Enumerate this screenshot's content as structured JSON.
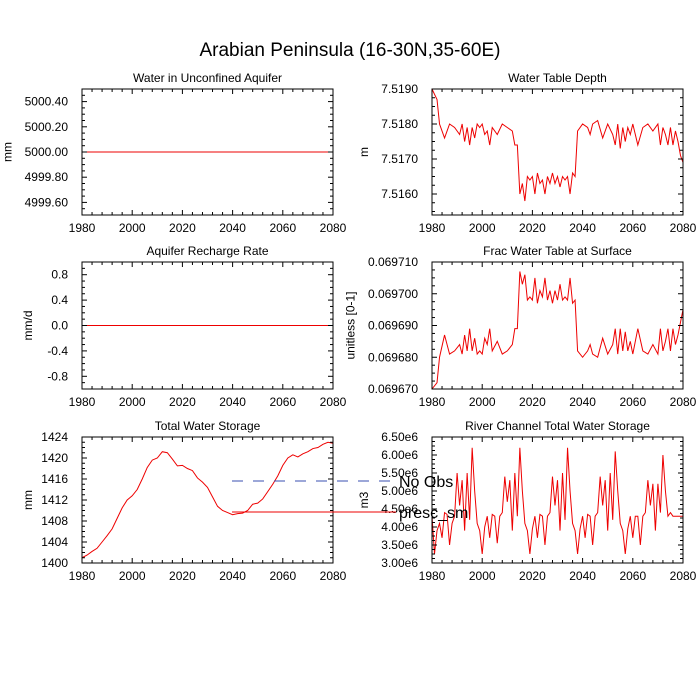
{
  "title": "Arabian Peninsula (16-30N,35-60E)",
  "legend": {
    "placement": "bottom-center",
    "entries": [
      {
        "label": "No Obs",
        "style": "dashed",
        "color": "#3a4fb0"
      },
      {
        "label": "presc_sm",
        "style": "solid",
        "color": "#ee0000"
      }
    ]
  },
  "chart_data": [
    {
      "type": "line",
      "title": "Water in Unconfined Aquifer",
      "ylabel": "mm",
      "xlim": [
        1980,
        2080
      ],
      "ylim": [
        4999.5,
        5000.5
      ],
      "xticks": [
        1980,
        2000,
        2020,
        2040,
        2060,
        2080
      ],
      "xtick_labels": [
        "1980",
        "2000",
        "2020",
        "2040",
        "2060",
        "2080"
      ],
      "yticks": [
        4999.6,
        4999.8,
        5000.0,
        5000.2,
        5000.4
      ],
      "ytick_labels": [
        "4999.60",
        "4999.80",
        "5000.00",
        "5000.20",
        "5000.40"
      ],
      "series": [
        {
          "name": "presc_sm",
          "color": "#ee0000",
          "x": [
            1980,
            2080
          ],
          "y": [
            5000.0,
            5000.0
          ]
        }
      ]
    },
    {
      "type": "line",
      "title": "Water Table Depth",
      "ylabel": "m",
      "xlim": [
        1980,
        2080
      ],
      "ylim": [
        7.5154,
        7.519
      ],
      "xticks": [
        1980,
        2000,
        2020,
        2040,
        2060,
        2080
      ],
      "xtick_labels": [
        "1980",
        "2000",
        "2020",
        "2040",
        "2060",
        "2080"
      ],
      "yticks": [
        7.516,
        7.517,
        7.518,
        7.519
      ],
      "ytick_labels": [
        "7.5160",
        "7.5170",
        "7.5180",
        "7.5190"
      ],
      "series": [
        {
          "name": "presc_sm",
          "color": "#ee0000",
          "x": [
            1980,
            1982,
            1983,
            1985,
            1987,
            1989,
            1991,
            1992,
            1993,
            1994,
            1995,
            1996,
            1997,
            1998,
            1999,
            2000,
            2001,
            2002,
            2003,
            2004,
            2006,
            2008,
            2010,
            2012,
            2013,
            2014,
            2015,
            2016,
            2017,
            2018,
            2019,
            2020,
            2021,
            2022,
            2023,
            2024,
            2025,
            2026,
            2027,
            2028,
            2029,
            2030,
            2031,
            2032,
            2033,
            2034,
            2035,
            2036,
            2037,
            2038,
            2040,
            2042,
            2043,
            2044,
            2046,
            2048,
            2050,
            2052,
            2053,
            2054,
            2055,
            2056,
            2057,
            2058,
            2059,
            2060,
            2062,
            2064,
            2066,
            2068,
            2070,
            2071,
            2072,
            2073,
            2074,
            2075,
            2076,
            2077,
            2078,
            2079,
            2080
          ],
          "y": [
            7.519,
            7.5187,
            7.518,
            7.5176,
            7.518,
            7.5179,
            7.5177,
            7.518,
            7.5175,
            7.5179,
            7.5174,
            7.5179,
            7.5176,
            7.518,
            7.5179,
            7.518,
            7.5177,
            7.5178,
            7.5174,
            7.5179,
            7.5177,
            7.518,
            7.5179,
            7.5178,
            7.5174,
            7.5174,
            7.516,
            7.5163,
            7.5158,
            7.5165,
            7.5164,
            7.5165,
            7.516,
            7.5166,
            7.5163,
            7.5164,
            7.516,
            7.5165,
            7.5163,
            7.5166,
            7.5163,
            7.5165,
            7.5162,
            7.5165,
            7.5164,
            7.5165,
            7.516,
            7.5166,
            7.5165,
            7.5178,
            7.518,
            7.5179,
            7.5177,
            7.518,
            7.5181,
            7.5176,
            7.518,
            7.5177,
            7.5174,
            7.518,
            7.5173,
            7.5179,
            7.5175,
            7.5179,
            7.5177,
            7.518,
            7.5174,
            7.5179,
            7.518,
            7.5178,
            7.518,
            7.5174,
            7.5179,
            7.5177,
            7.5174,
            7.5179,
            7.5174,
            7.5178,
            7.5175,
            7.5171,
            7.5169
          ]
        }
      ]
    },
    {
      "type": "line",
      "title": "Aquifer Recharge Rate",
      "ylabel": "mm/d",
      "xlim": [
        1980,
        2080
      ],
      "ylim": [
        -1.0,
        1.0
      ],
      "xticks": [
        1980,
        2000,
        2020,
        2040,
        2060,
        2080
      ],
      "xtick_labels": [
        "1980",
        "2000",
        "2020",
        "2040",
        "2060",
        "2080"
      ],
      "yticks": [
        -0.8,
        -0.4,
        0.0,
        0.4,
        0.8
      ],
      "ytick_labels": [
        "-0.8",
        "-0.4",
        "0.0",
        "0.4",
        "0.8"
      ],
      "series": [
        {
          "name": "presc_sm",
          "color": "#ee0000",
          "x": [
            1980,
            2080
          ],
          "y": [
            0.0,
            0.0
          ]
        }
      ]
    },
    {
      "type": "line",
      "title": "Frac Water Table at Surface",
      "ylabel": "unitless [0-1]",
      "xlim": [
        1980,
        2080
      ],
      "ylim": [
        0.06967,
        0.06971
      ],
      "xticks": [
        1980,
        2000,
        2020,
        2040,
        2060,
        2080
      ],
      "xtick_labels": [
        "1980",
        "2000",
        "2020",
        "2040",
        "2060",
        "2080"
      ],
      "yticks": [
        0.06967,
        0.06968,
        0.06969,
        0.0697,
        0.06971
      ],
      "ytick_labels": [
        "0.069670",
        "0.069680",
        "0.069690",
        "0.069700",
        "0.069710"
      ],
      "series": [
        {
          "name": "presc_sm",
          "color": "#ee0000",
          "x": [
            1980,
            1982,
            1983,
            1985,
            1987,
            1989,
            1991,
            1992,
            1993,
            1994,
            1995,
            1996,
            1997,
            1998,
            1999,
            2000,
            2001,
            2002,
            2003,
            2004,
            2006,
            2008,
            2010,
            2012,
            2013,
            2014,
            2015,
            2016,
            2017,
            2018,
            2019,
            2020,
            2021,
            2022,
            2023,
            2024,
            2025,
            2026,
            2027,
            2028,
            2029,
            2030,
            2031,
            2032,
            2033,
            2034,
            2035,
            2036,
            2037,
            2038,
            2040,
            2042,
            2043,
            2044,
            2046,
            2048,
            2050,
            2052,
            2053,
            2054,
            2055,
            2056,
            2057,
            2058,
            2059,
            2060,
            2062,
            2064,
            2066,
            2068,
            2070,
            2071,
            2072,
            2073,
            2074,
            2075,
            2076,
            2077,
            2078,
            2079,
            2080
          ],
          "y": [
            0.06967,
            0.069672,
            0.06968,
            0.069687,
            0.069681,
            0.069682,
            0.069684,
            0.069681,
            0.069687,
            0.069682,
            0.069689,
            0.069682,
            0.069686,
            0.069681,
            0.069682,
            0.069681,
            0.069686,
            0.069684,
            0.069689,
            0.069682,
            0.069685,
            0.069681,
            0.069682,
            0.069684,
            0.069689,
            0.069689,
            0.069707,
            0.069703,
            0.069706,
            0.069698,
            0.069699,
            0.069698,
            0.069705,
            0.069697,
            0.069701,
            0.069699,
            0.069705,
            0.069698,
            0.069701,
            0.069697,
            0.069701,
            0.069698,
            0.069703,
            0.069698,
            0.069699,
            0.069698,
            0.069705,
            0.069697,
            0.069698,
            0.069682,
            0.06968,
            0.069682,
            0.069684,
            0.069681,
            0.06968,
            0.069686,
            0.069681,
            0.069684,
            0.069689,
            0.069681,
            0.069689,
            0.069682,
            0.069688,
            0.069682,
            0.069685,
            0.069681,
            0.069689,
            0.069682,
            0.069681,
            0.069684,
            0.069681,
            0.069689,
            0.069682,
            0.069685,
            0.069689,
            0.069682,
            0.069689,
            0.069684,
            0.069687,
            0.069691,
            0.069695
          ]
        }
      ]
    },
    {
      "type": "line",
      "title": "Total Water Storage",
      "ylabel": "mm",
      "xlim": [
        1980,
        2080
      ],
      "ylim": [
        1400,
        1424
      ],
      "xticks": [
        1980,
        2000,
        2020,
        2040,
        2060,
        2080
      ],
      "xtick_labels": [
        "1980",
        "2000",
        "2020",
        "2040",
        "2060",
        "2080"
      ],
      "yticks": [
        1400,
        1404,
        1408,
        1412,
        1416,
        1420,
        1424
      ],
      "ytick_labels": [
        "1400",
        "1404",
        "1408",
        "1412",
        "1416",
        "1420",
        "1424"
      ],
      "series": [
        {
          "name": "presc_sm",
          "color": "#ee0000",
          "x": [
            1980,
            1982,
            1984,
            1986,
            1988,
            1990,
            1992,
            1994,
            1996,
            1998,
            2000,
            2002,
            2004,
            2006,
            2008,
            2010,
            2012,
            2014,
            2016,
            2018,
            2020,
            2022,
            2024,
            2026,
            2028,
            2030,
            2032,
            2034,
            2036,
            2038,
            2040,
            2042,
            2044,
            2046,
            2048,
            2050,
            2052,
            2054,
            2056,
            2058,
            2060,
            2062,
            2064,
            2066,
            2068,
            2070,
            2072,
            2074,
            2076,
            2078,
            2080
          ],
          "y": [
            1401.0,
            1401.5,
            1402.2,
            1402.8,
            1404.0,
            1405.2,
            1406.5,
            1408.5,
            1410.5,
            1412.0,
            1412.8,
            1414.0,
            1416.0,
            1418.2,
            1419.6,
            1420.0,
            1421.2,
            1421.0,
            1419.8,
            1418.5,
            1418.6,
            1418.0,
            1417.6,
            1416.2,
            1415.4,
            1414.4,
            1412.6,
            1410.8,
            1410.0,
            1409.6,
            1409.2,
            1409.4,
            1409.5,
            1410.0,
            1411.2,
            1411.4,
            1412.2,
            1413.6,
            1415.0,
            1416.6,
            1418.6,
            1420.0,
            1420.6,
            1420.2,
            1420.8,
            1421.2,
            1421.8,
            1422.0,
            1422.6,
            1423.0,
            1422.8
          ]
        }
      ]
    },
    {
      "type": "line",
      "title": "River Channel Total Water Storage",
      "ylabel": "m3",
      "xlim": [
        1980,
        2080
      ],
      "ylim": [
        3000000,
        6500000
      ],
      "xticks": [
        1980,
        2000,
        2020,
        2040,
        2060,
        2080
      ],
      "xtick_labels": [
        "1980",
        "2000",
        "2020",
        "2040",
        "2060",
        "2080"
      ],
      "yticks": [
        3000000,
        3500000,
        4000000,
        4500000,
        5000000,
        5500000,
        6000000,
        6500000
      ],
      "ytick_labels": [
        "3.00e6",
        "3.50e6",
        "4.00e6",
        "4.50e6",
        "5.00e6",
        "5.50e6",
        "6.00e6",
        "6.50e6"
      ],
      "series": [
        {
          "name": "presc_sm",
          "color": "#ee0000",
          "x": [
            1980,
            1981,
            1982,
            1983,
            1984,
            1985,
            1986,
            1987,
            1988,
            1989,
            1990,
            1991,
            1992,
            1993,
            1994,
            1995,
            1996,
            1997,
            1998,
            1999,
            2000,
            2001,
            2002,
            2003,
            2004,
            2005,
            2006,
            2007,
            2008,
            2009,
            2010,
            2011,
            2012,
            2013,
            2014,
            2015,
            2016,
            2017,
            2018,
            2019,
            2020,
            2021,
            2022,
            2023,
            2024,
            2025,
            2026,
            2027,
            2028,
            2029,
            2030,
            2031,
            2032,
            2033,
            2034,
            2035,
            2036,
            2037,
            2038,
            2039,
            2040,
            2041,
            2042,
            2043,
            2044,
            2045,
            2046,
            2047,
            2048,
            2049,
            2050,
            2051,
            2052,
            2053,
            2054,
            2055,
            2056,
            2057,
            2058,
            2059,
            2060,
            2061,
            2062,
            2063,
            2064,
            2065,
            2066,
            2067,
            2068,
            2069,
            2070,
            2071,
            2072,
            2073,
            2074,
            2075,
            2076,
            2077,
            2078,
            2079,
            2080
          ],
          "y": [
            4300000,
            3250000,
            3900000,
            4100000,
            3700000,
            4400000,
            4350000,
            3500000,
            4100000,
            4300000,
            5500000,
            4600000,
            5300000,
            3900000,
            5500000,
            4200000,
            6200000,
            5000000,
            4100000,
            3900000,
            3250000,
            4000000,
            4300000,
            3700000,
            4350000,
            4300000,
            3550000,
            4300000,
            4400000,
            5400000,
            4700000,
            5300000,
            3900000,
            5500000,
            4300000,
            6200000,
            5000000,
            4100000,
            3900000,
            3250000,
            3950000,
            4300000,
            3700000,
            4350000,
            4300000,
            3500000,
            4300000,
            4400000,
            5400000,
            4600000,
            5300000,
            3900000,
            5500000,
            4200000,
            6200000,
            5000000,
            4100000,
            3900000,
            3250000,
            3950000,
            4300000,
            3700000,
            4350000,
            4300000,
            3500000,
            4300000,
            4400000,
            5400000,
            4600000,
            5300000,
            3900000,
            5500000,
            4200000,
            6100000,
            5000000,
            4100000,
            3900000,
            3250000,
            3950000,
            4300000,
            3700000,
            4300000,
            4300000,
            3500000,
            4300000,
            4400000,
            5300000,
            4600000,
            5200000,
            3900000,
            5200000,
            4400000,
            6000000,
            5000000,
            4300000,
            4400000,
            4300000,
            4300000,
            4300000,
            4300000,
            4300000
          ]
        }
      ]
    }
  ]
}
